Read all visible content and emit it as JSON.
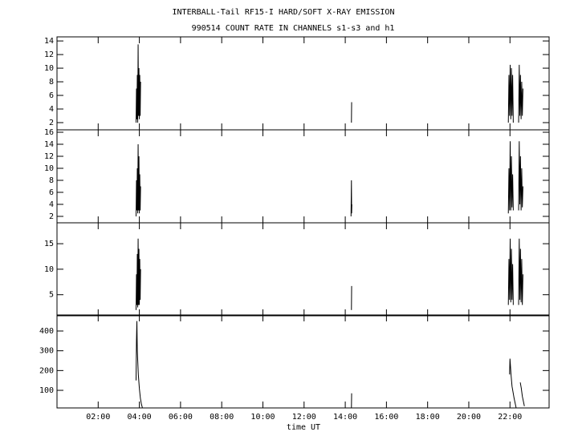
{
  "chart_data": [
    {
      "type": "line",
      "title": "INTERBALL-Tail RF15-I HARD/SOFT X-RAY EMISSION",
      "subtitle": "990514  COUNT RATE IN CHANNELS s1-s3 and h1",
      "xlim": [
        0,
        23.9
      ],
      "ylim": [
        0.94,
        14.6
      ],
      "yticks": [
        2,
        4,
        6,
        8,
        10,
        12,
        14
      ],
      "color": "#000000",
      "x": [
        3.84,
        3.86,
        3.88,
        3.9,
        3.92,
        3.94,
        3.96,
        3.98,
        4.0,
        4.02,
        4.04,
        4.06,
        9.0,
        14.3,
        14.31,
        18.0,
        21.92,
        21.95,
        21.98,
        22.01,
        22.04,
        22.07,
        22.1,
        22.13,
        22.16,
        22.3,
        22.42,
        22.45,
        22.48,
        22.51,
        22.54,
        22.57,
        22.6,
        22.63
      ],
      "values": [
        2,
        7,
        2.5,
        9,
        2,
        13.5,
        3,
        10,
        2.5,
        9,
        3,
        8,
        null,
        2,
        5,
        null,
        2,
        9,
        3,
        10.5,
        2.5,
        10,
        3,
        9,
        2,
        null,
        2,
        10.5,
        3,
        9,
        2.5,
        8,
        3,
        7
      ]
    },
    {
      "type": "line",
      "xlim": [
        0,
        23.9
      ],
      "ylim": [
        0.93,
        16.4
      ],
      "yticks": [
        2,
        4,
        6,
        8,
        10,
        12,
        14,
        16
      ],
      "color": "#000000",
      "x": [
        3.84,
        3.86,
        3.88,
        3.9,
        3.92,
        3.94,
        3.96,
        3.98,
        4.0,
        4.02,
        4.04,
        4.06,
        9.0,
        14.28,
        14.3,
        14.31,
        14.32,
        18.0,
        21.92,
        21.95,
        21.98,
        22.01,
        22.04,
        22.07,
        22.1,
        22.13,
        22.16,
        22.3,
        22.42,
        22.45,
        22.48,
        22.51,
        22.54,
        22.57,
        22.6,
        22.63
      ],
      "values": [
        2,
        8,
        3,
        10,
        2.5,
        14,
        3,
        12,
        2.5,
        9,
        3,
        7,
        null,
        2,
        8,
        2.5,
        4,
        null,
        2.5,
        10,
        3,
        14.5,
        3,
        12,
        3.5,
        9,
        3,
        null,
        3,
        14.5,
        4,
        12,
        3,
        10,
        3.5,
        7
      ]
    },
    {
      "type": "line",
      "xlim": [
        0,
        23.9
      ],
      "ylim": [
        0.87,
        19.1
      ],
      "yticks": [
        5,
        10,
        15
      ],
      "color": "#000000",
      "x": [
        3.84,
        3.86,
        3.88,
        3.9,
        3.92,
        3.94,
        3.96,
        3.98,
        4.0,
        4.02,
        4.04,
        4.06,
        9.0,
        14.3,
        14.31,
        18.0,
        21.92,
        21.95,
        21.98,
        22.01,
        22.04,
        22.07,
        22.1,
        22.13,
        22.16,
        22.3,
        22.42,
        22.45,
        22.48,
        22.51,
        22.54,
        22.57,
        22.6,
        22.63
      ],
      "values": [
        2,
        9,
        3,
        13,
        2.5,
        16,
        3,
        14,
        3,
        12,
        4,
        10,
        null,
        2,
        6.7,
        null,
        3,
        12,
        4,
        16,
        3.5,
        14,
        4,
        11,
        3,
        null,
        3,
        16,
        4,
        14,
        3.5,
        12,
        3,
        9
      ]
    },
    {
      "type": "line",
      "xlim": [
        0,
        23.9
      ],
      "ylim": [
        11,
        481
      ],
      "yticks": [
        100,
        200,
        300,
        400
      ],
      "color": "#000000",
      "xlabel": "time UT",
      "xticks": [
        {
          "value": 2,
          "label": "02:00"
        },
        {
          "value": 4,
          "label": "04:00"
        },
        {
          "value": 6,
          "label": "06:00"
        },
        {
          "value": 8,
          "label": "08:00"
        },
        {
          "value": 10,
          "label": "10:00"
        },
        {
          "value": 12,
          "label": "12:00"
        },
        {
          "value": 14,
          "label": "14:00"
        },
        {
          "value": 16,
          "label": "16:00"
        },
        {
          "value": 18,
          "label": "18:00"
        },
        {
          "value": 20,
          "label": "20:00"
        },
        {
          "value": 22,
          "label": "22:00"
        }
      ],
      "x": [
        3.84,
        3.86,
        3.88,
        3.9,
        3.95,
        4.0,
        4.05,
        4.1,
        4.15,
        9.0,
        14.3,
        14.31,
        18.0,
        21.98,
        22.0,
        22.05,
        22.1,
        22.2,
        22.3,
        22.4,
        22.5,
        22.55,
        22.6,
        22.7
      ],
      "values": [
        150,
        350,
        450,
        300,
        180,
        110,
        60,
        30,
        11,
        null,
        11,
        85,
        null,
        180,
        260,
        180,
        120,
        60,
        11,
        null,
        140,
        110,
        70,
        20
      ]
    }
  ]
}
